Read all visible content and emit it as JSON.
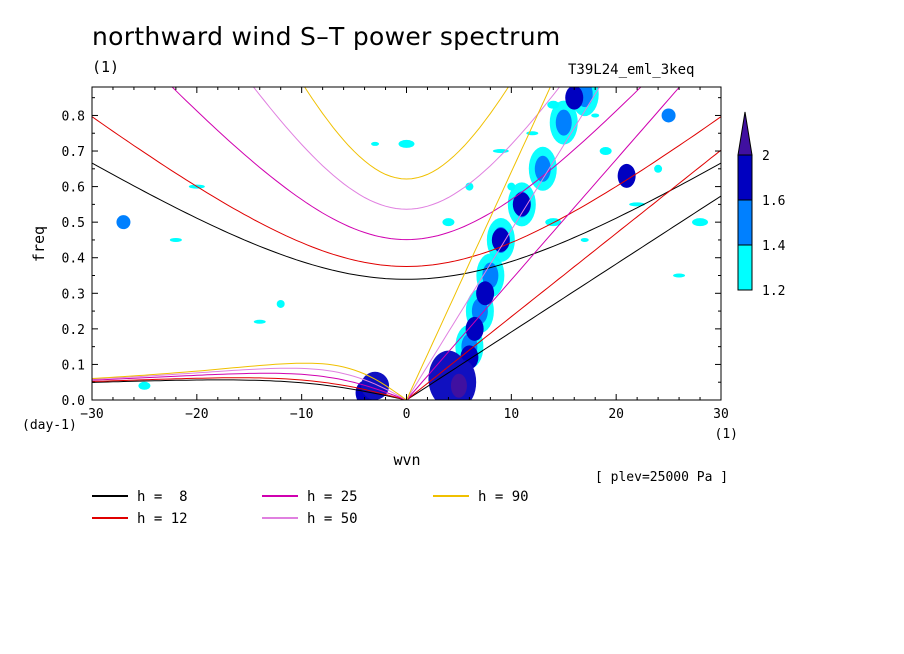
{
  "header": {
    "title": "northward wind S–T power spectrum",
    "title_unit": "(1)",
    "case_name": "T39L24_eml_3keq",
    "level_label": "[ plev=25000 Pa ]"
  },
  "colors": {
    "h8": "#000000",
    "h12": "#e00000",
    "h25": "#d000b0",
    "h50": "#e080e0",
    "h90": "#f0c000",
    "contour_1_2": "#00ffff",
    "contour_1_4": "#0080ff",
    "contour_1_6": "#0000c0",
    "contour_2": "#4010a0"
  },
  "chart_data": {
    "type": "heatmap",
    "title": "northward wind S–T power spectrum",
    "xlabel": "wvn",
    "ylabel": "freq",
    "x_unit": "(1)",
    "y_unit": "(day-1)",
    "xlim": [
      -30,
      30
    ],
    "ylim": [
      0,
      0.88
    ],
    "x_ticks": [
      -30,
      -20,
      -10,
      0,
      10,
      20,
      30
    ],
    "x_tick_labels": [
      "−30",
      "−20",
      "−10",
      "0",
      "10",
      "20",
      "30"
    ],
    "y_ticks": [
      0,
      0.1,
      0.2,
      0.3,
      0.4,
      0.5,
      0.6,
      0.7,
      0.8
    ],
    "y_tick_labels": [
      "0.0",
      "0.1",
      "0.2",
      "0.3",
      "0.4",
      "0.5",
      "0.6",
      "0.7",
      "0.8"
    ],
    "colorbar": {
      "levels": [
        1.2,
        1.4,
        1.6,
        2
      ],
      "level_labels": [
        "1.2",
        "1.4",
        "1.6",
        "2"
      ],
      "colors": [
        "#00ffff",
        "#0080ff",
        "#0000c0",
        "#4010a0"
      ]
    },
    "dispersion_curves": [
      {
        "name": "h =  8",
        "color": "#000000",
        "equiv_depth": 8
      },
      {
        "name": "h = 12",
        "color": "#e00000",
        "equiv_depth": 12
      },
      {
        "name": "h = 25",
        "color": "#d000b0",
        "equiv_depth": 25
      },
      {
        "name": "h = 50",
        "color": "#e080e0",
        "equiv_depth": 50
      },
      {
        "name": "h = 90",
        "color": "#f0c000",
        "equiv_depth": 90
      }
    ],
    "power_regions": [
      {
        "x": 5,
        "y": 0.05,
        "level": 2
      },
      {
        "x": 4.5,
        "y": 0.08,
        "level": 1.6
      },
      {
        "x": 6,
        "y": 0.12,
        "level": 1.6
      },
      {
        "x": 6.5,
        "y": 0.2,
        "level": 1.6
      },
      {
        "x": 7.5,
        "y": 0.3,
        "level": 1.6
      },
      {
        "x": 9,
        "y": 0.45,
        "level": 1.6
      },
      {
        "x": 11,
        "y": 0.55,
        "level": 1.6
      },
      {
        "x": 13,
        "y": 0.65,
        "level": 1.4
      },
      {
        "x": 16,
        "y": 0.85,
        "level": 1.6
      },
      {
        "x": 21,
        "y": 0.63,
        "level": 1.6
      },
      {
        "x": 25,
        "y": 0.8,
        "level": 1.4
      },
      {
        "x": -3,
        "y": 0.04,
        "level": 1.6
      },
      {
        "x": -4,
        "y": 0.02,
        "level": 1.6
      },
      {
        "x": -27,
        "y": 0.5,
        "level": 1.4
      }
    ]
  },
  "legend": {
    "items": [
      {
        "label": "h =  8",
        "color": "#000000"
      },
      {
        "label": "h = 12",
        "color": "#e00000"
      },
      {
        "label": "h = 25",
        "color": "#d000b0"
      },
      {
        "label": "h = 50",
        "color": "#e080e0"
      },
      {
        "label": "h = 90",
        "color": "#f0c000"
      }
    ]
  }
}
